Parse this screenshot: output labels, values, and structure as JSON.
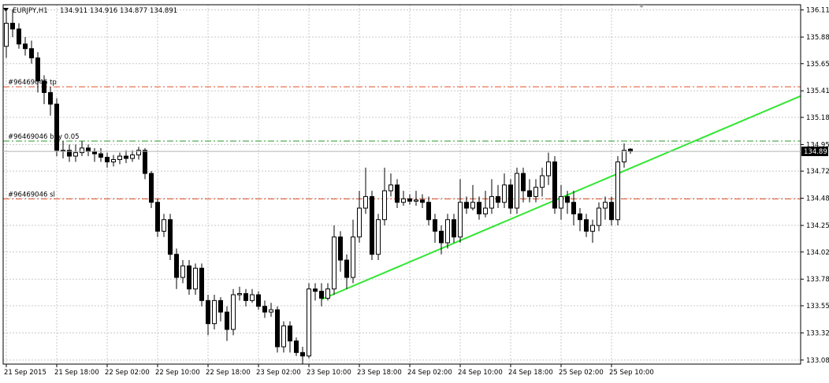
{
  "header": {
    "symbol_timeframe": "EURJPY,H1",
    "open": "134.911",
    "high": "134.916",
    "low": "134.877",
    "close": "134.891"
  },
  "chart_data": {
    "type": "candlestick",
    "symbol": "EURJPY",
    "timeframe": "H1",
    "ylim": [
      133.08,
      136.2
    ],
    "y_ticks": [
      "136.115",
      "135.880",
      "135.650",
      "135.415",
      "135.185",
      "134.950",
      "134.720",
      "134.485",
      "134.250",
      "134.020",
      "133.785",
      "133.555",
      "133.320",
      "133.085"
    ],
    "x_ticks": [
      "21 Sep 2015",
      "21 Sep 18:00",
      "22 Sep 02:00",
      "22 Sep 10:00",
      "22 Sep 18:00",
      "23 Sep 02:00",
      "23 Sep 10:00",
      "23 Sep 18:00",
      "24 Sep 02:00",
      "24 Sep 10:00",
      "24 Sep 18:00",
      "25 Sep 02:00",
      "25 Sep 10:00"
    ],
    "current_price": "134.891",
    "grid": true,
    "order_lines": [
      {
        "label": "#96469046 tp",
        "price": 135.45,
        "color": "#e0522a"
      },
      {
        "label": "#96469046 buy 0.05",
        "price": 134.98,
        "color": "#2e9a2e"
      },
      {
        "label": "#96469046 sl",
        "price": 134.48,
        "color": "#e0522a"
      }
    ],
    "trendline": {
      "color": "#33e633",
      "from": {
        "bar": 50,
        "price": 133.61
      },
      "to": {
        "bar": 126,
        "price": 135.37
      }
    },
    "candles": [
      [
        135.8,
        136.0,
        135.7,
        136.1
      ],
      [
        136.0,
        135.95,
        135.88,
        136.12
      ],
      [
        135.95,
        135.82,
        135.78,
        136.0
      ],
      [
        135.82,
        135.78,
        135.72,
        135.88
      ],
      [
        135.78,
        135.7,
        135.65,
        135.85
      ],
      [
        135.7,
        135.5,
        135.4,
        135.75
      ],
      [
        135.5,
        135.4,
        135.3,
        135.55
      ],
      [
        135.4,
        135.3,
        135.2,
        135.45
      ],
      [
        135.3,
        134.9,
        134.85,
        135.35
      ],
      [
        134.9,
        134.9,
        134.83,
        134.98
      ],
      [
        134.9,
        134.85,
        134.8,
        134.95
      ],
      [
        134.85,
        134.88,
        134.8,
        134.95
      ],
      [
        134.88,
        134.92,
        134.85,
        134.98
      ],
      [
        134.92,
        134.89,
        134.85,
        134.95
      ],
      [
        134.89,
        134.87,
        134.8,
        134.92
      ],
      [
        134.87,
        134.84,
        134.8,
        134.92
      ],
      [
        134.84,
        134.8,
        134.75,
        134.88
      ],
      [
        134.8,
        134.82,
        134.76,
        134.86
      ],
      [
        134.82,
        134.85,
        134.78,
        134.88
      ],
      [
        134.85,
        134.83,
        134.79,
        134.9
      ],
      [
        134.83,
        134.86,
        134.8,
        134.9
      ],
      [
        134.86,
        134.9,
        134.82,
        134.93
      ],
      [
        134.9,
        134.7,
        134.65,
        134.92
      ],
      [
        134.7,
        134.45,
        134.4,
        134.72
      ],
      [
        134.45,
        134.2,
        134.15,
        134.48
      ],
      [
        134.2,
        134.3,
        134.15,
        134.35
      ],
      [
        134.3,
        134.0,
        133.95,
        134.35
      ],
      [
        134.0,
        133.8,
        133.7,
        134.05
      ],
      [
        133.8,
        133.9,
        133.75,
        133.95
      ],
      [
        133.9,
        133.7,
        133.65,
        133.95
      ],
      [
        133.7,
        133.88,
        133.65,
        133.92
      ],
      [
        133.88,
        133.6,
        133.55,
        133.92
      ],
      [
        133.6,
        133.4,
        133.3,
        133.65
      ],
      [
        133.4,
        133.6,
        133.35,
        133.65
      ],
      [
        133.6,
        133.5,
        133.42,
        133.63
      ],
      [
        133.5,
        133.35,
        133.25,
        133.55
      ],
      [
        133.35,
        133.65,
        133.3,
        133.7
      ],
      [
        133.65,
        133.66,
        133.6,
        133.72
      ],
      [
        133.66,
        133.6,
        133.55,
        133.7
      ],
      [
        133.6,
        133.65,
        133.58,
        133.7
      ],
      [
        133.65,
        133.55,
        133.52,
        133.68
      ],
      [
        133.55,
        133.5,
        133.45,
        133.6
      ],
      [
        133.5,
        133.52,
        133.46,
        133.58
      ],
      [
        133.52,
        133.2,
        133.15,
        133.55
      ],
      [
        133.2,
        133.38,
        133.15,
        133.42
      ],
      [
        133.38,
        133.25,
        133.15,
        133.42
      ],
      [
        133.25,
        133.15,
        133.12,
        133.28
      ],
      [
        133.15,
        133.12,
        133.05,
        133.2
      ],
      [
        133.12,
        133.7,
        133.1,
        133.75
      ],
      [
        133.7,
        133.68,
        133.6,
        133.75
      ],
      [
        133.68,
        133.62,
        133.55,
        133.75
      ],
      [
        133.62,
        133.7,
        133.6,
        133.75
      ],
      [
        133.7,
        134.15,
        133.65,
        134.25
      ],
      [
        134.15,
        133.95,
        133.85,
        134.2
      ],
      [
        133.95,
        133.8,
        133.7,
        134.0
      ],
      [
        133.8,
        134.15,
        133.75,
        134.3
      ],
      [
        134.15,
        134.4,
        134.1,
        134.55
      ],
      [
        134.4,
        134.5,
        134.35,
        134.75
      ],
      [
        134.5,
        134.0,
        133.95,
        134.55
      ],
      [
        134.0,
        134.3,
        133.95,
        134.35
      ],
      [
        134.3,
        134.55,
        134.25,
        134.75
      ],
      [
        134.55,
        134.6,
        134.5,
        134.7
      ],
      [
        134.6,
        134.45,
        134.4,
        134.65
      ],
      [
        134.45,
        134.48,
        134.42,
        134.55
      ],
      [
        134.48,
        134.46,
        134.43,
        134.52
      ],
      [
        134.46,
        134.47,
        134.42,
        134.55
      ],
      [
        134.47,
        134.45,
        134.4,
        134.52
      ],
      [
        134.45,
        134.3,
        134.25,
        134.5
      ],
      [
        134.3,
        134.2,
        134.1,
        134.35
      ],
      [
        134.2,
        134.1,
        134.0,
        134.25
      ],
      [
        134.1,
        134.3,
        134.05,
        134.35
      ],
      [
        134.3,
        134.15,
        134.1,
        134.35
      ],
      [
        134.15,
        134.45,
        134.1,
        134.65
      ],
      [
        134.45,
        134.4,
        134.35,
        134.5
      ],
      [
        134.4,
        134.45,
        134.38,
        134.6
      ],
      [
        134.45,
        134.35,
        134.3,
        134.5
      ],
      [
        134.35,
        134.4,
        134.32,
        134.55
      ],
      [
        134.4,
        134.5,
        134.35,
        134.65
      ],
      [
        134.5,
        134.45,
        134.4,
        134.6
      ],
      [
        134.45,
        134.6,
        134.4,
        134.7
      ],
      [
        134.6,
        134.4,
        134.35,
        134.65
      ],
      [
        134.4,
        134.7,
        134.35,
        134.75
      ],
      [
        134.7,
        134.55,
        134.45,
        134.75
      ],
      [
        134.55,
        134.5,
        134.45,
        134.65
      ],
      [
        134.5,
        134.58,
        134.45,
        134.65
      ],
      [
        134.58,
        134.68,
        134.5,
        134.75
      ],
      [
        134.68,
        134.8,
        134.6,
        134.88
      ],
      [
        134.8,
        134.4,
        134.35,
        134.85
      ],
      [
        134.4,
        134.5,
        134.3,
        134.6
      ],
      [
        134.5,
        134.45,
        134.35,
        134.55
      ],
      [
        134.45,
        134.35,
        134.25,
        134.55
      ],
      [
        134.35,
        134.3,
        134.2,
        134.4
      ],
      [
        134.3,
        134.2,
        134.15,
        134.35
      ],
      [
        134.2,
        134.25,
        134.1,
        134.3
      ],
      [
        134.25,
        134.4,
        134.2,
        134.45
      ],
      [
        134.4,
        134.45,
        134.3,
        134.5
      ],
      [
        134.45,
        134.3,
        134.25,
        134.5
      ],
      [
        134.3,
        134.8,
        134.25,
        134.85
      ],
      [
        134.8,
        134.9,
        134.75,
        134.96
      ],
      [
        134.91,
        134.89,
        134.87,
        134.92
      ]
    ]
  }
}
